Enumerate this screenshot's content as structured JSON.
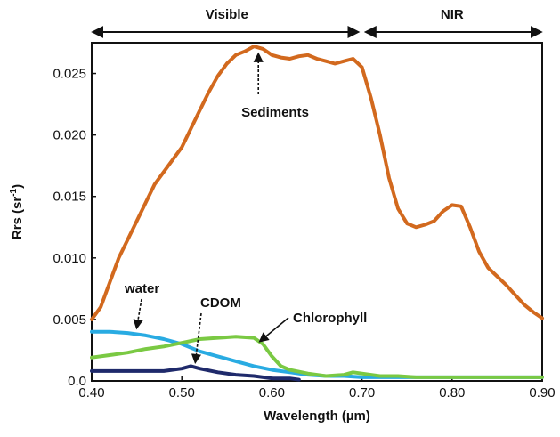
{
  "chart_data": {
    "type": "line",
    "title": "",
    "xlabel": "Wavelength (µm)",
    "ylabel": "Rrs (sr",
    "ylabel_sup": "-1",
    "ylabel_close": ")",
    "xlim": [
      0.4,
      0.9
    ],
    "ylim": [
      0.0,
      0.0275
    ],
    "x_ticks": [
      0.4,
      0.5,
      0.6,
      0.7,
      0.8,
      0.9
    ],
    "x_tick_labels": [
      "0.40",
      "0.50",
      "0.60",
      "0.70",
      "0.80",
      "0.90"
    ],
    "y_ticks": [
      0.0,
      0.005,
      0.01,
      0.015,
      0.02,
      0.025
    ],
    "y_tick_labels": [
      "0.0",
      "0.005",
      "0.010",
      "0.015",
      "0.020",
      "0.025"
    ],
    "regions": [
      {
        "label": "Visible",
        "from": 0.4,
        "to": 0.7
      },
      {
        "label": "NIR",
        "from": 0.7,
        "to": 0.9
      }
    ],
    "series": [
      {
        "name": "Sediments",
        "color": "#d2691e",
        "points": [
          [
            0.4,
            0.005
          ],
          [
            0.41,
            0.006
          ],
          [
            0.42,
            0.008
          ],
          [
            0.43,
            0.01
          ],
          [
            0.44,
            0.0115
          ],
          [
            0.45,
            0.013
          ],
          [
            0.46,
            0.0145
          ],
          [
            0.47,
            0.016
          ],
          [
            0.48,
            0.017
          ],
          [
            0.49,
            0.018
          ],
          [
            0.5,
            0.019
          ],
          [
            0.51,
            0.0205
          ],
          [
            0.52,
            0.022
          ],
          [
            0.53,
            0.0235
          ],
          [
            0.54,
            0.0248
          ],
          [
            0.55,
            0.0258
          ],
          [
            0.56,
            0.0265
          ],
          [
            0.57,
            0.0268
          ],
          [
            0.58,
            0.0272
          ],
          [
            0.59,
            0.027
          ],
          [
            0.6,
            0.0265
          ],
          [
            0.61,
            0.0263
          ],
          [
            0.62,
            0.0262
          ],
          [
            0.63,
            0.0264
          ],
          [
            0.64,
            0.0265
          ],
          [
            0.65,
            0.0262
          ],
          [
            0.66,
            0.026
          ],
          [
            0.67,
            0.0258
          ],
          [
            0.68,
            0.026
          ],
          [
            0.69,
            0.0262
          ],
          [
            0.7,
            0.0255
          ],
          [
            0.71,
            0.023
          ],
          [
            0.72,
            0.02
          ],
          [
            0.73,
            0.0165
          ],
          [
            0.74,
            0.014
          ],
          [
            0.75,
            0.0128
          ],
          [
            0.76,
            0.0125
          ],
          [
            0.77,
            0.0127
          ],
          [
            0.78,
            0.013
          ],
          [
            0.79,
            0.0138
          ],
          [
            0.8,
            0.0143
          ],
          [
            0.81,
            0.0142
          ],
          [
            0.82,
            0.0125
          ],
          [
            0.83,
            0.0105
          ],
          [
            0.84,
            0.0092
          ],
          [
            0.85,
            0.0085
          ],
          [
            0.86,
            0.0078
          ],
          [
            0.87,
            0.007
          ],
          [
            0.88,
            0.0062
          ],
          [
            0.89,
            0.0056
          ],
          [
            0.9,
            0.0051
          ]
        ]
      },
      {
        "name": "water",
        "color": "#29abe2",
        "points": [
          [
            0.4,
            0.004
          ],
          [
            0.42,
            0.004
          ],
          [
            0.44,
            0.0039
          ],
          [
            0.46,
            0.0037
          ],
          [
            0.48,
            0.0034
          ],
          [
            0.5,
            0.003
          ],
          [
            0.52,
            0.0024
          ],
          [
            0.54,
            0.002
          ],
          [
            0.56,
            0.0016
          ],
          [
            0.58,
            0.0012
          ],
          [
            0.6,
            0.0009
          ],
          [
            0.62,
            0.0007
          ],
          [
            0.64,
            0.0005
          ],
          [
            0.66,
            0.0004
          ],
          [
            0.68,
            0.0004
          ],
          [
            0.7,
            0.0003
          ],
          [
            0.72,
            0.0003
          ],
          [
            0.75,
            0.0003
          ],
          [
            0.8,
            0.0003
          ],
          [
            0.85,
            0.0003
          ],
          [
            0.9,
            0.0003
          ]
        ]
      },
      {
        "name": "CDOM",
        "color": "#1f2a6b",
        "points": [
          [
            0.4,
            0.0008
          ],
          [
            0.42,
            0.0008
          ],
          [
            0.44,
            0.0008
          ],
          [
            0.46,
            0.0008
          ],
          [
            0.48,
            0.0008
          ],
          [
            0.5,
            0.001
          ],
          [
            0.51,
            0.0012
          ],
          [
            0.52,
            0.001
          ],
          [
            0.54,
            0.0007
          ],
          [
            0.56,
            0.0005
          ],
          [
            0.58,
            0.0004
          ],
          [
            0.6,
            0.0002
          ],
          [
            0.62,
            0.0002
          ],
          [
            0.63,
            0.0001
          ]
        ]
      },
      {
        "name": "Chlorophyll",
        "color": "#7ac943",
        "points": [
          [
            0.4,
            0.0019
          ],
          [
            0.42,
            0.0021
          ],
          [
            0.44,
            0.0023
          ],
          [
            0.46,
            0.0026
          ],
          [
            0.48,
            0.0028
          ],
          [
            0.5,
            0.0031
          ],
          [
            0.52,
            0.0034
          ],
          [
            0.54,
            0.0035
          ],
          [
            0.56,
            0.0036
          ],
          [
            0.58,
            0.0035
          ],
          [
            0.59,
            0.003
          ],
          [
            0.6,
            0.002
          ],
          [
            0.61,
            0.0012
          ],
          [
            0.62,
            0.0009
          ],
          [
            0.64,
            0.0006
          ],
          [
            0.66,
            0.0004
          ],
          [
            0.68,
            0.0005
          ],
          [
            0.69,
            0.0007
          ],
          [
            0.7,
            0.0006
          ],
          [
            0.72,
            0.0004
          ],
          [
            0.74,
            0.0004
          ],
          [
            0.76,
            0.0003
          ],
          [
            0.78,
            0.0003
          ],
          [
            0.8,
            0.0003
          ],
          [
            0.82,
            0.0003
          ],
          [
            0.84,
            0.0003
          ],
          [
            0.86,
            0.0003
          ],
          [
            0.88,
            0.0003
          ],
          [
            0.9,
            0.0003
          ]
        ]
      }
    ],
    "annotations": [
      {
        "text": "Sediments",
        "target": [
          0.585,
          0.027
        ]
      },
      {
        "text": "water",
        "target": [
          0.45,
          0.0039
        ]
      },
      {
        "text": "CDOM",
        "target": [
          0.515,
          0.0011
        ]
      },
      {
        "text": "Chlorophyll",
        "target": [
          0.585,
          0.0028
        ]
      }
    ]
  }
}
